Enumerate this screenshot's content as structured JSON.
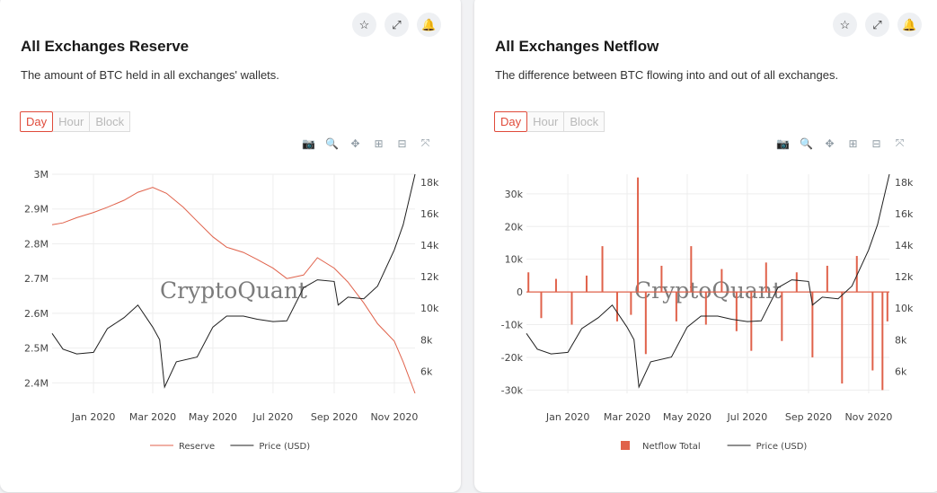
{
  "icons": {
    "star": "star-icon",
    "expand": "expand-icon",
    "bell": "bell-icon"
  },
  "tabs": [
    "Day",
    "Hour",
    "Block"
  ],
  "modebar": [
    "camera-icon",
    "zoom-icon",
    "pan-icon",
    "zoom-in-icon",
    "zoom-out-icon",
    "autoscale-icon"
  ],
  "watermark": "CryptoQuant",
  "colors": {
    "reserve": "#e0624b",
    "price": "#1f1f1f",
    "netflow": "#e0624b",
    "accent": "#e04a3a"
  },
  "cards": [
    {
      "title": "All Exchanges Reserve",
      "description": "The amount of BTC held in all exchanges' wallets."
    },
    {
      "title": "All Exchanges Netflow",
      "description": "The difference between BTC flowing into and out of all exchanges."
    }
  ],
  "chart_data": [
    {
      "type": "line",
      "x_ticks": [
        "Jan 2020",
        "Mar 2020",
        "May 2020",
        "Jul 2020",
        "Sep 2020",
        "Nov 2020"
      ],
      "y_ticks": [
        "3M",
        "2.9M",
        "2.8M",
        "2.7M",
        "2.6M",
        "2.5M",
        "2.4M"
      ],
      "y2_ticks": [
        "18k",
        "16k",
        "14k",
        "12k",
        "10k",
        "8k",
        "6k"
      ],
      "ylim": [
        2.37,
        3.0
      ],
      "y2lim": [
        4600,
        18500
      ],
      "grid": true,
      "legend_position": "bottom",
      "series": [
        {
          "name": "Reserve",
          "axis": "y",
          "color": "#e0624b",
          "x": [
            "2019-11-20",
            "2019-12-01",
            "2019-12-15",
            "2020-01-01",
            "2020-01-15",
            "2020-02-01",
            "2020-02-15",
            "2020-03-01",
            "2020-03-15",
            "2020-04-01",
            "2020-04-15",
            "2020-05-01",
            "2020-05-15",
            "2020-06-01",
            "2020-06-15",
            "2020-07-01",
            "2020-07-15",
            "2020-08-01",
            "2020-08-15",
            "2020-09-01",
            "2020-09-15",
            "2020-10-01",
            "2020-10-15",
            "2020-11-01",
            "2020-11-10",
            "2020-11-22"
          ],
          "values": [
            2.855,
            2.86,
            2.875,
            2.89,
            2.905,
            2.925,
            2.948,
            2.962,
            2.945,
            2.905,
            2.865,
            2.82,
            2.79,
            2.775,
            2.755,
            2.73,
            2.7,
            2.71,
            2.76,
            2.73,
            2.69,
            2.63,
            2.57,
            2.52,
            2.46,
            2.37
          ]
        },
        {
          "name": "Price (USD)",
          "axis": "y2",
          "color": "#1f1f1f",
          "x": [
            "2019-11-20",
            "2019-12-01",
            "2019-12-15",
            "2020-01-01",
            "2020-01-15",
            "2020-02-01",
            "2020-02-15",
            "2020-03-01",
            "2020-03-08",
            "2020-03-13",
            "2020-03-25",
            "2020-04-15",
            "2020-05-01",
            "2020-05-15",
            "2020-06-01",
            "2020-06-15",
            "2020-07-01",
            "2020-07-15",
            "2020-08-01",
            "2020-08-15",
            "2020-09-01",
            "2020-09-05",
            "2020-09-15",
            "2020-10-01",
            "2020-10-15",
            "2020-11-01",
            "2020-11-10",
            "2020-11-22"
          ],
          "values": [
            8400,
            7400,
            7100,
            7200,
            8700,
            9400,
            10200,
            8800,
            8000,
            5000,
            6600,
            6900,
            8800,
            9500,
            9500,
            9300,
            9150,
            9200,
            11300,
            11800,
            11700,
            10200,
            10700,
            10600,
            11400,
            13700,
            15300,
            18500
          ]
        }
      ],
      "x_range": [
        "2019-11-20",
        "2020-11-22"
      ]
    },
    {
      "type": "bar",
      "x_ticks": [
        "Jan 2020",
        "Mar 2020",
        "May 2020",
        "Jul 2020",
        "Sep 2020",
        "Nov 2020"
      ],
      "y_ticks": [
        "30k",
        "20k",
        "10k",
        "0",
        "-10k",
        "-20k",
        "-30k"
      ],
      "y2_ticks": [
        "18k",
        "16k",
        "14k",
        "12k",
        "10k",
        "8k",
        "6k"
      ],
      "ylim": [
        -31000,
        36000
      ],
      "y2lim": [
        4600,
        18500
      ],
      "grid": true,
      "legend_position": "bottom",
      "series": [
        {
          "name": "Netflow Total",
          "axis": "y",
          "color": "#e0624b",
          "x": [
            "2019-11-22",
            "2019-12-05",
            "2019-12-20",
            "2020-01-05",
            "2020-01-20",
            "2020-02-05",
            "2020-02-20",
            "2020-03-05",
            "2020-03-12",
            "2020-03-20",
            "2020-04-05",
            "2020-04-20",
            "2020-05-05",
            "2020-05-20",
            "2020-06-05",
            "2020-06-20",
            "2020-07-05",
            "2020-07-20",
            "2020-08-05",
            "2020-08-20",
            "2020-09-05",
            "2020-09-20",
            "2020-10-05",
            "2020-10-20",
            "2020-11-05",
            "2020-11-15",
            "2020-11-20"
          ],
          "values": [
            6000,
            -8000,
            4000,
            -10000,
            5000,
            14000,
            -9000,
            -7000,
            35000,
            -19000,
            8000,
            -9000,
            14000,
            -10000,
            7000,
            -12000,
            -18000,
            9000,
            -15000,
            6000,
            -20000,
            8000,
            -28000,
            11000,
            -24000,
            -30000,
            -9000
          ]
        },
        {
          "name": "Price (USD)",
          "axis": "y2",
          "color": "#1f1f1f",
          "x": [
            "2019-11-20",
            "2019-12-01",
            "2019-12-15",
            "2020-01-01",
            "2020-01-15",
            "2020-02-01",
            "2020-02-15",
            "2020-03-01",
            "2020-03-08",
            "2020-03-13",
            "2020-03-25",
            "2020-04-15",
            "2020-05-01",
            "2020-05-15",
            "2020-06-01",
            "2020-06-15",
            "2020-07-01",
            "2020-07-15",
            "2020-08-01",
            "2020-08-15",
            "2020-09-01",
            "2020-09-05",
            "2020-09-15",
            "2020-10-01",
            "2020-10-15",
            "2020-11-01",
            "2020-11-10",
            "2020-11-22"
          ],
          "values": [
            8400,
            7400,
            7100,
            7200,
            8700,
            9400,
            10200,
            8800,
            8000,
            5000,
            6600,
            6900,
            8800,
            9500,
            9500,
            9300,
            9150,
            9200,
            11300,
            11800,
            11700,
            10200,
            10700,
            10600,
            11400,
            13700,
            15300,
            18500
          ]
        }
      ],
      "x_range": [
        "2019-11-20",
        "2020-11-22"
      ]
    }
  ]
}
